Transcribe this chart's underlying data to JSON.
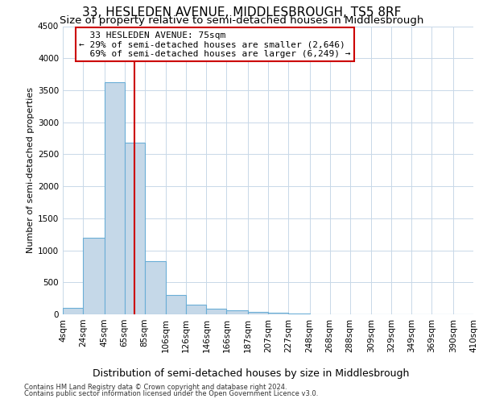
{
  "title": "33, HESLEDEN AVENUE, MIDDLESBROUGH, TS5 8RF",
  "subtitle": "Size of property relative to semi-detached houses in Middlesbrough",
  "xlabel": "Distribution of semi-detached houses by size in Middlesbrough",
  "ylabel": "Number of semi-detached properties",
  "footer_line1": "Contains HM Land Registry data © Crown copyright and database right 2024.",
  "footer_line2": "Contains public sector information licensed under the Open Government Licence v3.0.",
  "bar_edges": [
    4,
    24,
    45,
    65,
    85,
    106,
    126,
    146,
    166,
    187,
    207,
    227,
    248,
    268,
    288,
    309,
    329,
    349,
    369,
    390,
    410
  ],
  "bar_heights": [
    100,
    1200,
    3620,
    2680,
    830,
    300,
    145,
    90,
    60,
    40,
    20,
    10,
    5,
    2,
    1,
    1,
    0,
    0,
    0,
    0
  ],
  "bar_color": "#c5d8e8",
  "bar_edge_color": "#6aaed6",
  "property_size": 75,
  "property_label": "33 HESLEDEN AVENUE: 75sqm",
  "pct_smaller": 29,
  "count_smaller": "2,646",
  "pct_larger": 69,
  "count_larger": "6,249",
  "vline_color": "#cc0000",
  "annotation_box_color": "#cc0000",
  "ylim": [
    0,
    4500
  ],
  "yticks": [
    0,
    500,
    1000,
    1500,
    2000,
    2500,
    3000,
    3500,
    4000,
    4500
  ],
  "xtick_labels": [
    "4sqm",
    "24sqm",
    "45sqm",
    "65sqm",
    "85sqm",
    "106sqm",
    "126sqm",
    "146sqm",
    "166sqm",
    "187sqm",
    "207sqm",
    "227sqm",
    "248sqm",
    "268sqm",
    "288sqm",
    "309sqm",
    "329sqm",
    "349sqm",
    "369sqm",
    "390sqm",
    "410sqm"
  ],
  "background_color": "#ffffff",
  "grid_color": "#c8d8e8",
  "title_fontsize": 11,
  "subtitle_fontsize": 9.5,
  "annotation_fontsize": 8,
  "ylabel_fontsize": 8,
  "xlabel_fontsize": 9,
  "tick_fontsize": 7.5,
  "footer_fontsize": 6
}
